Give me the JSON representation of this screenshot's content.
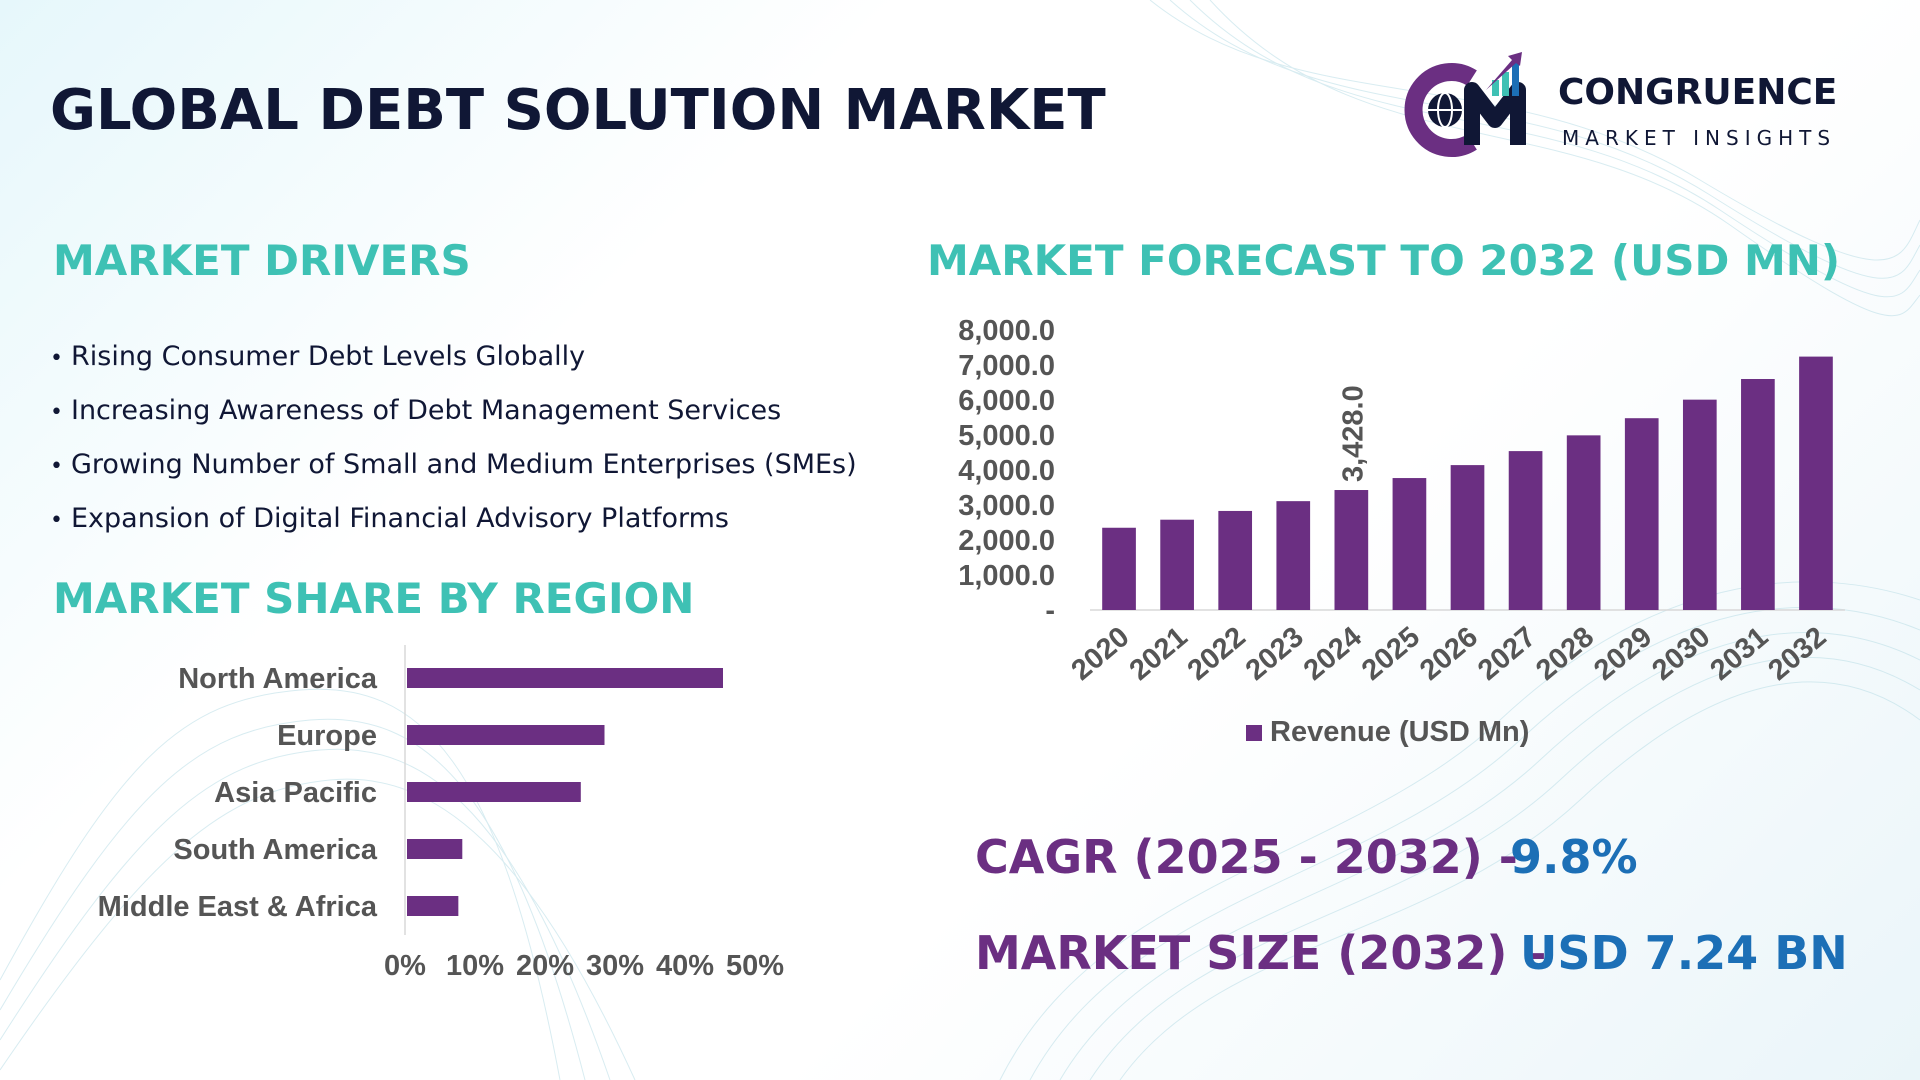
{
  "page": {
    "title": "GLOBAL DEBT SOLUTION MARKET",
    "colors": {
      "heading": "#3ec1b4",
      "title": "#101735",
      "bar": "#6b2f82",
      "stat_label": "#6b2f82",
      "stat_value": "#1c6fb6"
    }
  },
  "logo": {
    "name": "CONGRUENCE",
    "tagline": "MARKET INSIGHTS",
    "mark_letters": "CM",
    "icons": [
      "globe-icon",
      "growth-arrow-icon"
    ]
  },
  "drivers": {
    "heading": "MARKET DRIVERS",
    "items": [
      "Rising Consumer Debt Levels Globally",
      "Increasing Awareness of Debt Management Services",
      "Growing Number of Small and Medium Enterprises (SMEs)",
      "Expansion of Digital Financial Advisory Platforms"
    ]
  },
  "region": {
    "heading": "MARKET SHARE BY REGION"
  },
  "forecast": {
    "heading": "MARKET FORECAST TO 2032 (USD MN)"
  },
  "stats": {
    "cagr_label": "CAGR (2025 - 2032) -",
    "cagr_value": "9.8%",
    "size_label": "MARKET SIZE (2032) –",
    "size_value": "USD 7.24 BN"
  },
  "chart_data": [
    {
      "type": "bar",
      "orientation": "horizontal",
      "categories": [
        "North America",
        "Europe",
        "Asia Pacific",
        "South America",
        "Middle East & Africa"
      ],
      "values": [
        40,
        25,
        22,
        7,
        6.5
      ],
      "unit": "%",
      "xlim": [
        0,
        50
      ],
      "x_ticks": [
        "0%",
        "10%",
        "20%",
        "30%",
        "40%",
        "50%"
      ],
      "grid": false,
      "legend": "none"
    },
    {
      "type": "bar",
      "categories": [
        "2020",
        "2021",
        "2022",
        "2023",
        "2024",
        "2025",
        "2026",
        "2027",
        "2028",
        "2029",
        "2030",
        "2031",
        "2032"
      ],
      "series": [
        {
          "name": "Revenue (USD Mn)",
          "values": [
            2350,
            2580,
            2830,
            3110,
            3428,
            3770,
            4140,
            4540,
            4990,
            5480,
            6010,
            6600,
            7240
          ]
        }
      ],
      "data_labels": [
        {
          "category": "2024",
          "text": "3,428.0"
        }
      ],
      "ylim": [
        0,
        8000
      ],
      "y_ticks": [
        "-",
        "1,000.0",
        "2,000.0",
        "3,000.0",
        "4,000.0",
        "5,000.0",
        "6,000.0",
        "7,000.0",
        "8,000.0"
      ],
      "grid": false,
      "legend": "bottom"
    }
  ]
}
